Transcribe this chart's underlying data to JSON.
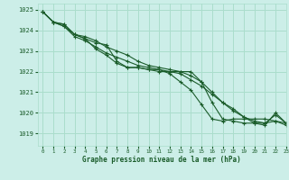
{
  "background_color": "#cceee8",
  "grid_color": "#aaddcc",
  "line_color": "#1a5c2a",
  "marker_color": "#1a5c2a",
  "xlabel": "Graphe pression niveau de la mer (hPa)",
  "xlim": [
    -0.5,
    23
  ],
  "ylim": [
    1018.4,
    1025.3
  ],
  "yticks": [
    1019,
    1020,
    1021,
    1022,
    1023,
    1024,
    1025
  ],
  "xticks": [
    0,
    1,
    2,
    3,
    4,
    5,
    6,
    7,
    8,
    9,
    10,
    11,
    12,
    13,
    14,
    15,
    16,
    17,
    18,
    19,
    20,
    21,
    22,
    23
  ],
  "series": [
    [
      1024.9,
      1024.4,
      1024.2,
      1023.8,
      1023.6,
      1023.1,
      1022.8,
      1022.4,
      1022.2,
      1022.2,
      1022.1,
      1022.1,
      1021.9,
      1021.5,
      1021.1,
      1020.4,
      1019.7,
      1019.6,
      1019.7,
      1019.7,
      1019.7,
      1019.7,
      1019.6,
      1019.4
    ],
    [
      1024.9,
      1024.4,
      1024.3,
      1023.8,
      1023.6,
      1023.4,
      1023.3,
      1022.5,
      1022.2,
      1022.2,
      1022.1,
      1022.0,
      1022.0,
      1022.0,
      1022.0,
      1021.5,
      1020.5,
      1019.7,
      1019.6,
      1019.5,
      1019.5,
      1019.5,
      1019.6,
      1019.5
    ],
    [
      1024.9,
      1024.4,
      1024.3,
      1023.8,
      1023.7,
      1023.5,
      1023.2,
      1023.0,
      1022.8,
      1022.5,
      1022.3,
      1022.2,
      1022.1,
      1022.0,
      1021.8,
      1021.5,
      1021.0,
      1020.5,
      1020.2,
      1019.8,
      1019.6,
      1019.5,
      1019.9,
      1019.5
    ],
    [
      1024.9,
      1024.4,
      1024.2,
      1023.7,
      1023.5,
      1023.2,
      1022.9,
      1022.7,
      1022.5,
      1022.3,
      1022.2,
      1022.1,
      1022.0,
      1021.9,
      1021.6,
      1021.3,
      1020.9,
      1020.5,
      1020.1,
      1019.8,
      1019.5,
      1019.4,
      1020.0,
      1019.5
    ]
  ]
}
